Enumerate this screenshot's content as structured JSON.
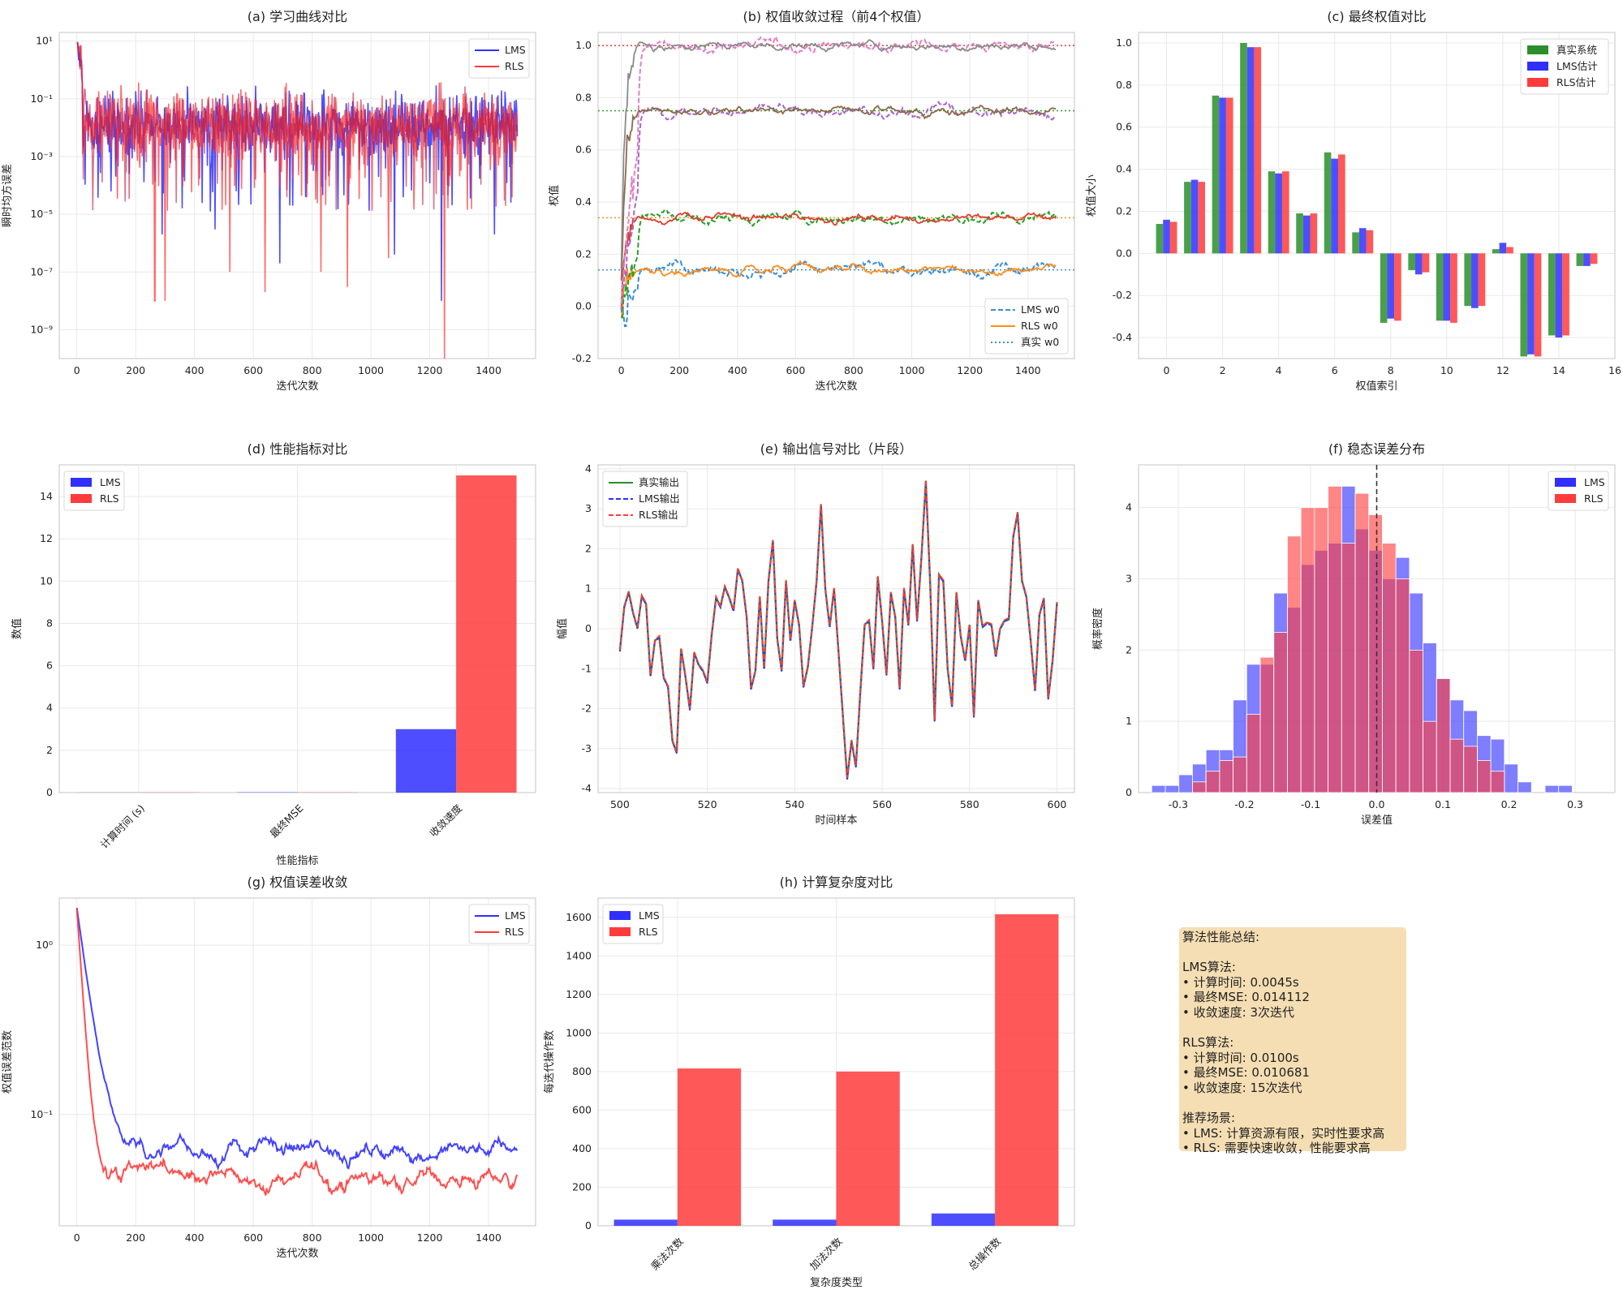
{
  "colors": {
    "blue": "#2f2fff",
    "red": "#ff3b3b",
    "green": "#2a8f2a",
    "purple": "#c0193f"
  },
  "chart_data": [
    {
      "id": "a",
      "type": "line",
      "title": "(a) 学习曲线对比",
      "xlabel": "迭代次数",
      "ylabel": "瞬时均方误差",
      "yscale": "log",
      "xlim": [
        -60,
        1560
      ],
      "ylim": [
        1e-10,
        20
      ],
      "xticks": [
        0,
        200,
        400,
        600,
        800,
        1000,
        1200,
        1400
      ],
      "yticks": [
        {
          "v": 10,
          "l": "10¹"
        },
        {
          "v": 0.1,
          "l": "10⁻¹"
        },
        {
          "v": 0.001,
          "l": "10⁻³"
        },
        {
          "v": 1e-05,
          "l": "10⁻⁵"
        },
        {
          "v": 1e-07,
          "l": "10⁻⁷"
        },
        {
          "v": 1e-09,
          "l": "10⁻⁹"
        }
      ],
      "legend": [
        "LMS",
        "RLS"
      ],
      "note": "noisy curves between about 1e-4 and 0.3 after ~50 iterations; peak ~8 at start; RLS dips to ~1e-10 near 1250"
    },
    {
      "id": "b",
      "type": "line",
      "title": "(b) 权值收敛过程（前4个权值）",
      "xlabel": "迭代次数",
      "ylabel": "权值",
      "xlim": [
        -80,
        1560
      ],
      "ylim": [
        -0.2,
        1.05
      ],
      "xticks": [
        0,
        200,
        400,
        600,
        800,
        1000,
        1200,
        1400
      ],
      "yticks": [
        -0.2,
        0.0,
        0.2,
        0.4,
        0.6,
        0.8,
        1.0
      ],
      "true_weights": [
        0.14,
        0.34,
        0.75,
        1.0
      ],
      "legend": [
        "LMS w0",
        "RLS w0",
        "真实 w0"
      ]
    },
    {
      "id": "c",
      "type": "bar",
      "title": "(c) 最终权值对比",
      "xlabel": "权值索引",
      "ylabel": "权值大小",
      "xlim": [
        -1,
        16
      ],
      "ylim": [
        -0.5,
        1.05
      ],
      "xticks": [
        0,
        2,
        4,
        6,
        8,
        10,
        12,
        14,
        16
      ],
      "yticks": [
        -0.4,
        -0.2,
        0.0,
        0.2,
        0.4,
        0.6,
        0.8,
        1.0
      ],
      "categories": [
        0,
        1,
        2,
        3,
        4,
        5,
        6,
        7,
        8,
        9,
        10,
        11,
        12,
        13,
        14,
        15
      ],
      "series": [
        {
          "name": "真实系统",
          "values": [
            0.14,
            0.34,
            0.75,
            1.0,
            0.39,
            0.19,
            0.48,
            0.1,
            -0.33,
            -0.08,
            -0.32,
            -0.25,
            0.02,
            -0.49,
            -0.39,
            -0.06
          ]
        },
        {
          "name": "LMS估计",
          "values": [
            0.16,
            0.35,
            0.74,
            0.98,
            0.38,
            0.18,
            0.45,
            0.12,
            -0.31,
            -0.1,
            -0.32,
            -0.26,
            0.05,
            -0.48,
            -0.4,
            -0.06
          ]
        },
        {
          "name": "RLS估计",
          "values": [
            0.15,
            0.34,
            0.74,
            0.98,
            0.39,
            0.19,
            0.47,
            0.11,
            -0.32,
            -0.09,
            -0.33,
            -0.25,
            0.03,
            -0.49,
            -0.39,
            -0.05
          ]
        }
      ]
    },
    {
      "id": "d",
      "type": "bar",
      "title": "(d) 性能指标对比",
      "xlabel": "性能指标",
      "ylabel": "数值",
      "ylim": [
        0,
        15.5
      ],
      "yticks": [
        0,
        2,
        4,
        6,
        8,
        10,
        12,
        14
      ],
      "categories": [
        "计算时间 (s)",
        "最终MSE",
        "收敛速度"
      ],
      "series": [
        {
          "name": "LMS",
          "values": [
            0.0045,
            0.014112,
            3
          ]
        },
        {
          "name": "RLS",
          "values": [
            0.01,
            0.010681,
            15
          ]
        }
      ]
    },
    {
      "id": "e",
      "type": "line",
      "title": "(e) 输出信号对比（片段）",
      "xlabel": "时间样本",
      "ylabel": "幅值",
      "xlim": [
        495,
        604
      ],
      "ylim": [
        -4.1,
        4.1
      ],
      "xticks": [
        500,
        520,
        540,
        560,
        580,
        600
      ],
      "yticks": [
        -4,
        -3,
        -2,
        -1,
        0,
        1,
        2,
        3,
        4
      ],
      "x_start": 500,
      "values": [
        -0.55,
        0.55,
        0.92,
        0.4,
        0.02,
        0.82,
        0.62,
        -1.18,
        -0.3,
        -0.2,
        -1.22,
        -1.45,
        -2.8,
        -3.1,
        -0.5,
        -1.2,
        -2.02,
        -0.6,
        -0.9,
        -1.05,
        -1.35,
        -0.15,
        0.78,
        0.55,
        1.05,
        0.78,
        0.45,
        1.5,
        1.2,
        0.3,
        -1.5,
        -1.05,
        0.8,
        -1.0,
        1.2,
        2.2,
        -0.25,
        -1.05,
        1.2,
        -0.3,
        0.7,
        0.1,
        -1.45,
        -0.95,
        0.05,
        1.2,
        3.1,
        1.0,
        0.05,
        1.0,
        -0.55,
        -2.15,
        -3.75,
        -2.8,
        -3.45,
        -1.6,
        0.1,
        0.2,
        -1.0,
        1.3,
        0.2,
        -1.15,
        0.9,
        0.3,
        -1.5,
        1.0,
        0.1,
        2.1,
        0.2,
        1.8,
        3.7,
        1.1,
        -2.3,
        1.35,
        1.2,
        -1.0,
        -1.95,
        0.9,
        -0.2,
        -0.8,
        0.1,
        -2.2,
        0.7,
        0.05,
        0.15,
        0.1,
        -0.7,
        0.0,
        0.2,
        0.25,
        2.3,
        2.9,
        1.2,
        0.8,
        -0.3,
        -1.55,
        0.35,
        0.75,
        -1.75,
        -0.8,
        0.65
      ],
      "legend": [
        "真实输出",
        "LMS输出",
        "RLS输出"
      ]
    },
    {
      "id": "f",
      "type": "histogram",
      "title": "(f) 稳态误差分布",
      "xlabel": "误差值",
      "ylabel": "概率密度",
      "xlim": [
        -0.36,
        0.36
      ],
      "ylim": [
        0,
        4.6
      ],
      "xticks": [
        -0.3,
        -0.2,
        -0.1,
        0.0,
        0.1,
        0.2,
        0.3
      ],
      "yticks": [
        0,
        1,
        2,
        3,
        4
      ],
      "bin_start": -0.34,
      "bin_width": 0.0205,
      "series": [
        {
          "name": "LMS",
          "values": [
            0.1,
            0.1,
            0.25,
            0.4,
            0.6,
            0.6,
            1.3,
            1.8,
            1.8,
            2.8,
            2.6,
            3.2,
            3.4,
            3.5,
            4.3,
            3.7,
            3.4,
            3.0,
            3.3,
            2.8,
            2.1,
            1.6,
            1.3,
            1.15,
            0.8,
            0.75,
            0.4,
            0.15,
            0.0,
            0.1,
            0.1
          ]
        },
        {
          "name": "RLS",
          "values": [
            0.0,
            0.0,
            0.0,
            0.15,
            0.3,
            0.45,
            0.5,
            1.1,
            1.9,
            2.25,
            3.6,
            4.0,
            4.0,
            4.3,
            3.5,
            4.2,
            3.9,
            3.5,
            3.0,
            2.0,
            1.0,
            1.6,
            0.75,
            0.65,
            0.45,
            0.3,
            0.0,
            0.0,
            0.0,
            0.0,
            0.0
          ]
        }
      ],
      "legend": [
        "LMS",
        "RLS"
      ]
    },
    {
      "id": "g",
      "type": "line",
      "title": "(g) 权值误差收敛",
      "xlabel": "迭代次数",
      "ylabel": "权值误差范数",
      "yscale": "log",
      "xlim": [
        -60,
        1560
      ],
      "ylim": [
        0.022,
        1.9
      ],
      "xticks": [
        0,
        200,
        400,
        600,
        800,
        1000,
        1200,
        1400
      ],
      "yticks": [
        {
          "v": 1,
          "l": "10⁰"
        },
        {
          "v": 0.1,
          "l": "10⁻¹"
        }
      ],
      "legend": [
        "LMS",
        "RLS"
      ],
      "note": "both start at ~1.6; LMS settles ~0.06, RLS settles ~0.04"
    },
    {
      "id": "h",
      "type": "bar",
      "title": "(h) 计算复杂度对比",
      "xlabel": "复杂度类型",
      "ylabel": "每迭代操作数",
      "ylim": [
        0,
        1700
      ],
      "yticks": [
        0,
        200,
        400,
        600,
        800,
        1000,
        1200,
        1400,
        1600
      ],
      "categories": [
        "乘法次数",
        "加法次数",
        "总操作数"
      ],
      "series": [
        {
          "name": "LMS",
          "values": [
            32,
            32,
            64
          ]
        },
        {
          "name": "RLS",
          "values": [
            816,
            800,
            1616
          ]
        }
      ]
    }
  ],
  "summary": {
    "text": "算法性能总结:\n\nLMS算法:\n• 计算时间: 0.0045s\n• 最终MSE: 0.014112\n• 收敛速度: 3次迭代\n\nRLS算法:\n• 计算时间: 0.0100s\n• 最终MSE: 0.010681\n• 收敛速度: 15次迭代\n\n推荐场景:\n• LMS: 计算资源有限，实时性要求高\n• RLS: 需要快速收敛，性能要求高"
  }
}
